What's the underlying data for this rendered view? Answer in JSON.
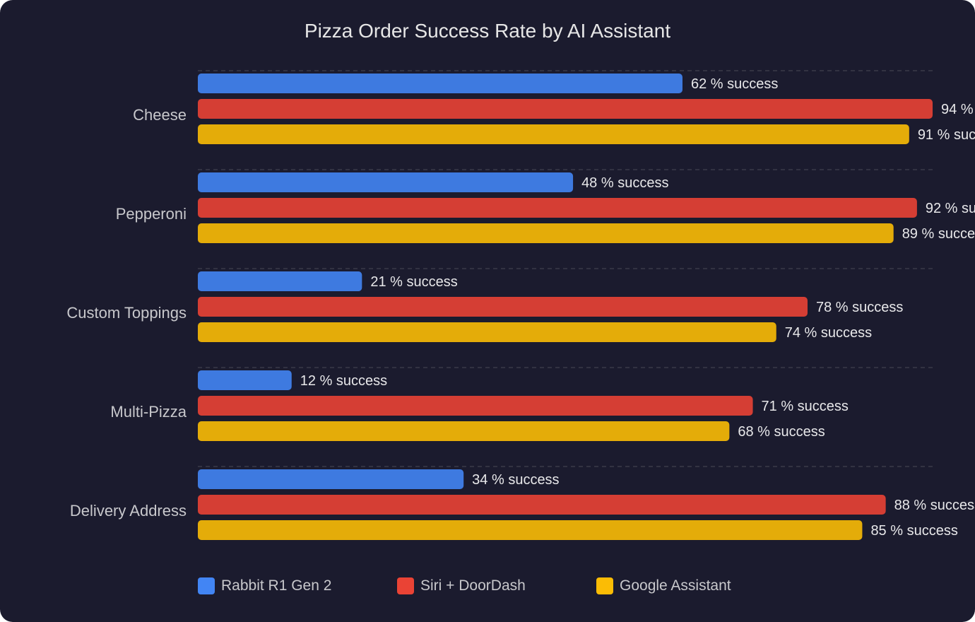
{
  "chart_data": {
    "type": "bar",
    "orientation": "horizontal",
    "title": "Pizza Order Success Rate by AI Assistant",
    "categories": [
      "Cheese",
      "Pepperoni",
      "Custom Toppings",
      "Multi-Pizza",
      "Delivery Address"
    ],
    "series": [
      {
        "name": "Rabbit R1 Gen 2",
        "color": "#4285F4",
        "values": [
          62,
          48,
          21,
          12,
          34
        ]
      },
      {
        "name": "Siri + DoorDash",
        "color": "#EA4335",
        "values": [
          94,
          92,
          78,
          71,
          88
        ]
      },
      {
        "name": "Google Assistant",
        "color": "#FBBC05",
        "values": [
          91,
          89,
          74,
          68,
          85
        ]
      }
    ],
    "value_label_suffix": " % success",
    "xlim": [
      0,
      100
    ],
    "grid": true,
    "legend": "bottom",
    "background": "#1b1b2e"
  }
}
